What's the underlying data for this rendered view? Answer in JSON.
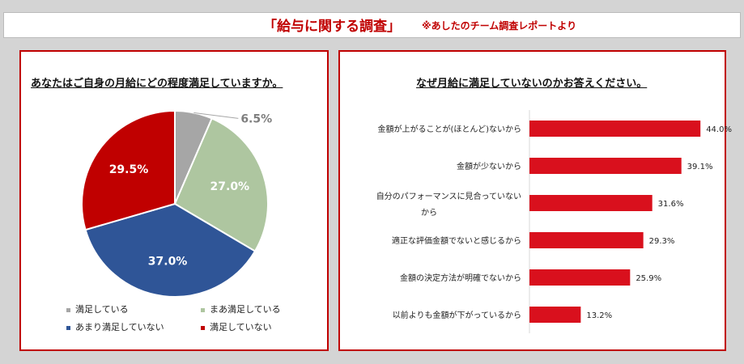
{
  "header": {
    "title": "「給与に関する調査」",
    "note": "※あしたのチーム調査レポートより"
  },
  "left_panel": {
    "title": "あなたはご自身の月給にどの程度満足していますか。"
  },
  "right_panel": {
    "title": "なぜ月給に満足していないのかお答えください。"
  },
  "chart_data": [
    {
      "type": "pie",
      "title": "あなたはご自身の月給にどの程度満足していますか。",
      "categories": [
        "満足している",
        "まあ満足している",
        "あまり満足していない",
        "満足していない"
      ],
      "values": [
        6.5,
        27.0,
        37.0,
        29.5
      ],
      "labels": [
        "6.5%",
        "27.0%",
        "37.0%",
        "29.5%"
      ],
      "colors": [
        "#a6a6a6",
        "#aec6a0",
        "#2f5597",
        "#c00000"
      ],
      "legend": "bottom"
    },
    {
      "type": "bar",
      "orientation": "horizontal",
      "title": "なぜ月給に満足していないのかお答えください。",
      "categories": [
        [
          "金額が上がることが(ほとんど)ないから"
        ],
        [
          "金額が少ないから"
        ],
        [
          "自分のパフォーマンスに見合っていない",
          "から"
        ],
        [
          "適正な評価金額でないと感じるから"
        ],
        [
          "金額の決定方法が明確でないから"
        ],
        [
          "以前よりも金額が下がっているから"
        ]
      ],
      "values": [
        44.0,
        39.1,
        31.6,
        29.3,
        25.9,
        13.2
      ],
      "labels": [
        "44.0%",
        "39.1%",
        "31.6%",
        "29.3%",
        "25.9%",
        "13.2%"
      ],
      "colors": [
        "#d9101d"
      ]
    }
  ]
}
